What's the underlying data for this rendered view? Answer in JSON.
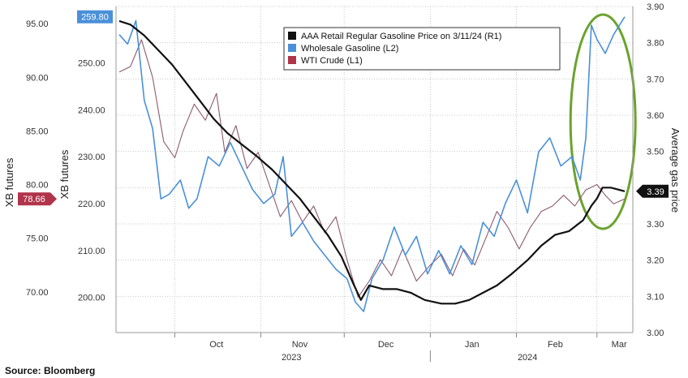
{
  "source": "Source:  Bloomberg",
  "chart_data": {
    "type": "line",
    "title": "",
    "grid": true,
    "legend_position": "top-center",
    "axes": {
      "left_outer": {
        "label": "XB futures",
        "ticks": [
          "95.00",
          "90.00",
          "85.00",
          "80.00",
          "75.00",
          "70.00"
        ],
        "range": [
          66.2,
          96.6
        ]
      },
      "left_inner": {
        "label": "XB futures",
        "ticks": [
          "250.00",
          "240.00",
          "230.00",
          "220.00",
          "210.00",
          "200.00"
        ],
        "range": [
          192.5,
          262.0
        ]
      },
      "right": {
        "label": "Average gas price",
        "ticks": [
          "3.90",
          "3.80",
          "3.70",
          "3.60",
          "3.50",
          "3.40",
          "3.30",
          "3.20",
          "3.10",
          "3.00"
        ],
        "range": [
          3.0,
          3.9
        ]
      }
    },
    "x_months": [
      "Oct",
      "Nov",
      "Dec",
      "Jan",
      "Feb",
      "Mar"
    ],
    "x_years": [
      "2023",
      "2024"
    ],
    "x_range": [
      "2023-09-11",
      "2024-03-11"
    ],
    "last_value_tags": [
      {
        "series": "Wholesale Gasoline (L2)",
        "text": "259.80",
        "color": "#4a90d9"
      },
      {
        "series": "WTI Crude (L1)",
        "text": "78.66",
        "color": "#b0344a"
      },
      {
        "series": "AAA Retail Regular Gasoline Price on 3/11/24 (R1)",
        "text": "3.39",
        "color": "#111111"
      }
    ],
    "series": [
      {
        "name": "AAA Retail Regular Gasoline Price on 3/11/24 (R1)",
        "axis": "right",
        "color": "#111111",
        "points": [
          [
            "2023-09-11",
            3.86
          ],
          [
            "2023-09-15",
            3.85
          ],
          [
            "2023-09-20",
            3.82
          ],
          [
            "2023-09-25",
            3.78
          ],
          [
            "2023-09-30",
            3.74
          ],
          [
            "2023-10-05",
            3.69
          ],
          [
            "2023-10-10",
            3.64
          ],
          [
            "2023-10-15",
            3.59
          ],
          [
            "2023-10-20",
            3.55
          ],
          [
            "2023-10-25",
            3.52
          ],
          [
            "2023-10-30",
            3.49
          ],
          [
            "2023-11-05",
            3.45
          ],
          [
            "2023-11-10",
            3.41
          ],
          [
            "2023-11-15",
            3.37
          ],
          [
            "2023-11-20",
            3.32
          ],
          [
            "2023-11-25",
            3.27
          ],
          [
            "2023-11-30",
            3.21
          ],
          [
            "2023-12-04",
            3.14
          ],
          [
            "2023-12-07",
            3.09
          ],
          [
            "2023-12-10",
            3.13
          ],
          [
            "2023-12-15",
            3.12
          ],
          [
            "2023-12-20",
            3.12
          ],
          [
            "2023-12-25",
            3.11
          ],
          [
            "2023-12-30",
            3.09
          ],
          [
            "2024-01-05",
            3.08
          ],
          [
            "2024-01-10",
            3.08
          ],
          [
            "2024-01-15",
            3.09
          ],
          [
            "2024-01-20",
            3.11
          ],
          [
            "2024-01-25",
            3.13
          ],
          [
            "2024-01-30",
            3.16
          ],
          [
            "2024-02-05",
            3.2
          ],
          [
            "2024-02-10",
            3.24
          ],
          [
            "2024-02-15",
            3.27
          ],
          [
            "2024-02-20",
            3.28
          ],
          [
            "2024-02-25",
            3.31
          ],
          [
            "2024-02-28",
            3.35
          ],
          [
            "2024-03-01",
            3.37
          ],
          [
            "2024-03-03",
            3.4
          ],
          [
            "2024-03-06",
            3.4
          ],
          [
            "2024-03-11",
            3.39
          ]
        ]
      },
      {
        "name": "Wholesale Gasoline (L2)",
        "axis": "left_inner",
        "color": "#4a90d9",
        "points": [
          [
            "2023-09-11",
            256
          ],
          [
            "2023-09-14",
            254
          ],
          [
            "2023-09-17",
            259
          ],
          [
            "2023-09-20",
            242
          ],
          [
            "2023-09-23",
            236
          ],
          [
            "2023-09-26",
            221
          ],
          [
            "2023-09-29",
            222
          ],
          [
            "2023-10-03",
            225
          ],
          [
            "2023-10-06",
            219
          ],
          [
            "2023-10-09",
            221
          ],
          [
            "2023-10-13",
            230
          ],
          [
            "2023-10-17",
            228
          ],
          [
            "2023-10-21",
            233
          ],
          [
            "2023-10-25",
            228
          ],
          [
            "2023-10-29",
            223
          ],
          [
            "2023-11-02",
            220
          ],
          [
            "2023-11-06",
            222
          ],
          [
            "2023-11-09",
            230
          ],
          [
            "2023-11-12",
            213
          ],
          [
            "2023-11-16",
            216
          ],
          [
            "2023-11-20",
            212
          ],
          [
            "2023-11-24",
            209
          ],
          [
            "2023-11-28",
            206
          ],
          [
            "2023-12-02",
            204
          ],
          [
            "2023-12-05",
            199
          ],
          [
            "2023-12-08",
            197
          ],
          [
            "2023-12-11",
            204
          ],
          [
            "2023-12-15",
            208
          ],
          [
            "2023-12-19",
            215
          ],
          [
            "2023-12-23",
            209
          ],
          [
            "2023-12-27",
            213
          ],
          [
            "2023-12-31",
            205
          ],
          [
            "2024-01-04",
            210
          ],
          [
            "2024-01-08",
            205
          ],
          [
            "2024-01-12",
            211
          ],
          [
            "2024-01-16",
            207
          ],
          [
            "2024-01-20",
            216
          ],
          [
            "2024-01-24",
            213
          ],
          [
            "2024-01-28",
            220
          ],
          [
            "2024-02-01",
            225
          ],
          [
            "2024-02-05",
            218
          ],
          [
            "2024-02-09",
            231
          ],
          [
            "2024-02-13",
            234
          ],
          [
            "2024-02-17",
            228
          ],
          [
            "2024-02-21",
            230
          ],
          [
            "2024-02-24",
            225
          ],
          [
            "2024-02-26",
            234
          ],
          [
            "2024-02-28",
            258
          ],
          [
            "2024-03-01",
            255
          ],
          [
            "2024-03-04",
            252
          ],
          [
            "2024-03-07",
            256
          ],
          [
            "2024-03-11",
            259.8
          ]
        ]
      },
      {
        "name": "WTI Crude (L1)",
        "axis": "left_outer",
        "color": "#8c5a6e",
        "points": [
          [
            "2023-09-11",
            90.5
          ],
          [
            "2023-09-15",
            91.0
          ],
          [
            "2023-09-19",
            93.5
          ],
          [
            "2023-09-23",
            90.0
          ],
          [
            "2023-09-27",
            84.0
          ],
          [
            "2023-10-01",
            82.5
          ],
          [
            "2023-10-04",
            85.0
          ],
          [
            "2023-10-08",
            87.5
          ],
          [
            "2023-10-12",
            86.0
          ],
          [
            "2023-10-16",
            88.5
          ],
          [
            "2023-10-19",
            83.0
          ],
          [
            "2023-10-23",
            85.5
          ],
          [
            "2023-10-27",
            81.5
          ],
          [
            "2023-10-31",
            83.0
          ],
          [
            "2023-11-04",
            80.0
          ],
          [
            "2023-11-08",
            77.0
          ],
          [
            "2023-11-12",
            78.5
          ],
          [
            "2023-11-16",
            76.5
          ],
          [
            "2023-11-20",
            78.0
          ],
          [
            "2023-11-24",
            75.5
          ],
          [
            "2023-11-28",
            77.0
          ],
          [
            "2023-12-02",
            73.0
          ],
          [
            "2023-12-06",
            69.5
          ],
          [
            "2023-12-10",
            71.0
          ],
          [
            "2023-12-14",
            73.0
          ],
          [
            "2023-12-18",
            71.5
          ],
          [
            "2023-12-22",
            74.0
          ],
          [
            "2023-12-27",
            71.0
          ],
          [
            "2024-01-01",
            72.5
          ],
          [
            "2024-01-05",
            73.5
          ],
          [
            "2024-01-09",
            71.5
          ],
          [
            "2024-01-13",
            74.0
          ],
          [
            "2024-01-17",
            72.5
          ],
          [
            "2024-01-21",
            75.0
          ],
          [
            "2024-01-25",
            77.5
          ],
          [
            "2024-01-29",
            76.0
          ],
          [
            "2024-02-02",
            74.0
          ],
          [
            "2024-02-06",
            76.0
          ],
          [
            "2024-02-10",
            77.5
          ],
          [
            "2024-02-14",
            78.0
          ],
          [
            "2024-02-18",
            79.0
          ],
          [
            "2024-02-22",
            78.0
          ],
          [
            "2024-02-26",
            79.5
          ],
          [
            "2024-03-01",
            80.0
          ],
          [
            "2024-03-04",
            79.0
          ],
          [
            "2024-03-07",
            78.2
          ],
          [
            "2024-03-11",
            78.66
          ]
        ]
      }
    ]
  }
}
